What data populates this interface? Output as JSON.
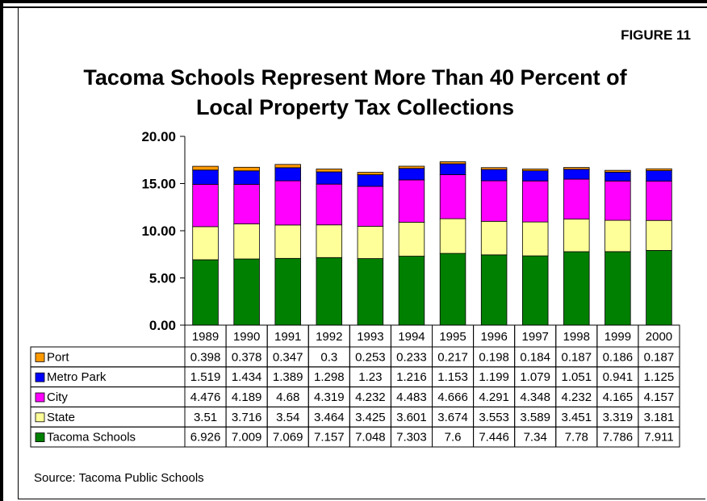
{
  "figure_label": "FIGURE 11",
  "source": "Source: Tacoma Public Schools",
  "chart_data": {
    "type": "bar",
    "stacked": true,
    "title": "Tacoma Schools Represent More Than 40 Percent of Local Property Tax Collections",
    "categories": [
      "1989",
      "1990",
      "1991",
      "1992",
      "1993",
      "1994",
      "1995",
      "1996",
      "1997",
      "1998",
      "1999",
      "2000"
    ],
    "y_ticks": [
      "0.00",
      "5.00",
      "10.00",
      "15.00",
      "20.00"
    ],
    "ylim": [
      0,
      20
    ],
    "series": [
      {
        "name": "Tacoma Schools",
        "color": "#008000",
        "values": [
          6.926,
          7.009,
          7.069,
          7.157,
          7.048,
          7.303,
          7.6,
          7.446,
          7.34,
          7.78,
          7.786,
          7.911
        ],
        "labels": [
          "6.926",
          "7.009",
          "7.069",
          "7.157",
          "7.048",
          "7.303",
          "7.6",
          "7.446",
          "7.34",
          "7.78",
          "7.786",
          "7.911"
        ]
      },
      {
        "name": "State",
        "color": "#FFFF99",
        "values": [
          3.51,
          3.716,
          3.54,
          3.464,
          3.425,
          3.601,
          3.674,
          3.553,
          3.589,
          3.451,
          3.319,
          3.181
        ],
        "labels": [
          "3.51",
          "3.716",
          "3.54",
          "3.464",
          "3.425",
          "3.601",
          "3.674",
          "3.553",
          "3.589",
          "3.451",
          "3.319",
          "3.181"
        ]
      },
      {
        "name": "City",
        "color": "#FF00FF",
        "values": [
          4.476,
          4.189,
          4.68,
          4.319,
          4.232,
          4.483,
          4.666,
          4.291,
          4.348,
          4.232,
          4.165,
          4.157
        ],
        "labels": [
          "4.476",
          "4.189",
          "4.68",
          "4.319",
          "4.232",
          "4.483",
          "4.666",
          "4.291",
          "4.348",
          "4.232",
          "4.165",
          "4.157"
        ]
      },
      {
        "name": "Metro Park",
        "color": "#0000FF",
        "values": [
          1.519,
          1.434,
          1.389,
          1.298,
          1.23,
          1.216,
          1.153,
          1.199,
          1.079,
          1.051,
          0.941,
          1.125
        ],
        "labels": [
          "1.519",
          "1.434",
          "1.389",
          "1.298",
          "1.23",
          "1.216",
          "1.153",
          "1.199",
          "1.079",
          "1.051",
          "0.941",
          "1.125"
        ]
      },
      {
        "name": "Port",
        "color": "#FF9900",
        "values": [
          0.398,
          0.378,
          0.347,
          0.3,
          0.253,
          0.233,
          0.217,
          0.198,
          0.184,
          0.187,
          0.186,
          0.187
        ],
        "labels": [
          "0.398",
          "0.378",
          "0.347",
          "0.3",
          "0.253",
          "0.233",
          "0.217",
          "0.198",
          "0.184",
          "0.187",
          "0.186",
          "0.187"
        ]
      }
    ],
    "table_row_order": [
      "Port",
      "Metro Park",
      "City",
      "State",
      "Tacoma Schools"
    ],
    "legend": "data-table-left",
    "grid": false
  }
}
